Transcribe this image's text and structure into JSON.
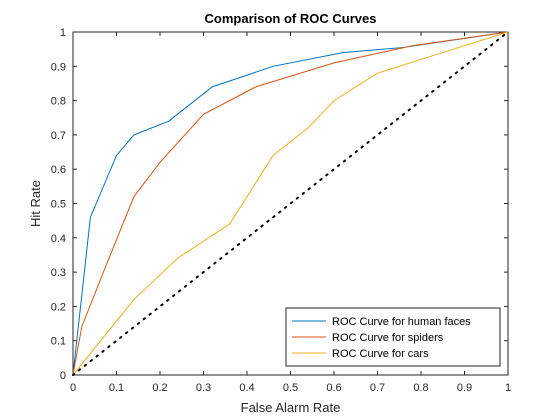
{
  "chart_data": {
    "type": "line",
    "title": "Comparison of ROC Curves",
    "xlabel": "False Alarm Rate",
    "ylabel": "Hit Rate",
    "xlim": [
      0,
      1
    ],
    "ylim": [
      0,
      1
    ],
    "xticks": [
      "0",
      "0.1",
      "0.2",
      "0.3",
      "0.4",
      "0.5",
      "0.6",
      "0.7",
      "0.8",
      "0.9",
      "1"
    ],
    "yticks": [
      "0",
      "0.1",
      "0.2",
      "0.3",
      "0.4",
      "0.5",
      "0.6",
      "0.7",
      "0.8",
      "0.9",
      "1"
    ],
    "grid": false,
    "legend_position": "bottom-right",
    "series": [
      {
        "name": "ROC Curve for human faces",
        "color": "#0072BD",
        "style": "solid",
        "x": [
          0,
          0.04,
          0.1,
          0.14,
          0.22,
          0.32,
          0.46,
          0.62,
          0.76,
          1.0
        ],
        "y": [
          0,
          0.46,
          0.64,
          0.7,
          0.74,
          0.84,
          0.9,
          0.94,
          0.955,
          1.0
        ]
      },
      {
        "name": "ROC Curve for spiders",
        "color": "#D95319",
        "style": "solid",
        "x": [
          0,
          0.02,
          0.07,
          0.14,
          0.2,
          0.3,
          0.42,
          0.6,
          0.78,
          1.0
        ],
        "y": [
          0,
          0.14,
          0.3,
          0.52,
          0.62,
          0.76,
          0.84,
          0.91,
          0.96,
          1.0
        ]
      },
      {
        "name": "ROC Curve for cars",
        "color": "#EDB120",
        "style": "solid",
        "x": [
          0,
          0.14,
          0.24,
          0.36,
          0.46,
          0.54,
          0.6,
          0.7,
          0.85,
          1.0
        ],
        "y": [
          0,
          0.22,
          0.34,
          0.44,
          0.64,
          0.72,
          0.8,
          0.88,
          0.94,
          1.0
        ]
      },
      {
        "color": "#000000",
        "style": "dotted",
        "x": [
          0,
          1
        ],
        "y": [
          0,
          1
        ]
      }
    ]
  }
}
